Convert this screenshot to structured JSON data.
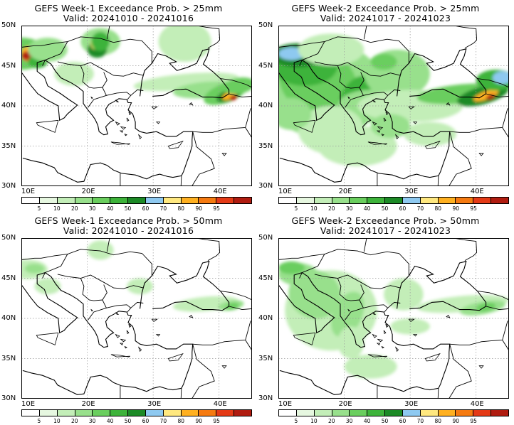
{
  "panels": [
    {
      "title1": "GEFS Week-1 Exceedance Prob. > 25mm",
      "title2": "Valid: 20241010 - 20241016",
      "week": 1,
      "threshold_mm": 25
    },
    {
      "title1": "GEFS Week-2 Exceedance Prob. > 25mm",
      "title2": "Valid: 20241017 - 20241023",
      "week": 2,
      "threshold_mm": 25
    },
    {
      "title1": "GEFS Week-1 Exceedance Prob. > 50mm",
      "title2": "Valid: 20241010 - 20241016",
      "week": 1,
      "threshold_mm": 50
    },
    {
      "title1": "GEFS Week-2 Exceedance Prob. > 50mm",
      "title2": "Valid: 20241017 - 20241023",
      "week": 2,
      "threshold_mm": 50
    }
  ],
  "axes": {
    "lat_labels": [
      "50N",
      "45N",
      "40N",
      "35N",
      "30N"
    ],
    "lon_labels": [
      "10E",
      "20E",
      "30E",
      "40E"
    ],
    "lat_range": [
      30,
      50
    ],
    "lon_range": [
      10,
      45
    ]
  },
  "colorbar": {
    "labels": [
      "5",
      "10",
      "20",
      "30",
      "40",
      "50",
      "60",
      "70",
      "80",
      "90",
      "95"
    ],
    "colors": [
      "#ffffff",
      "#e6f7e0",
      "#c3eeb8",
      "#98e08c",
      "#6ace5e",
      "#3db33a",
      "#1c8a26",
      "#8ec9f0",
      "#ffe87f",
      "#ffb020",
      "#f57a10",
      "#e43a16",
      "#b01c10"
    ]
  }
}
